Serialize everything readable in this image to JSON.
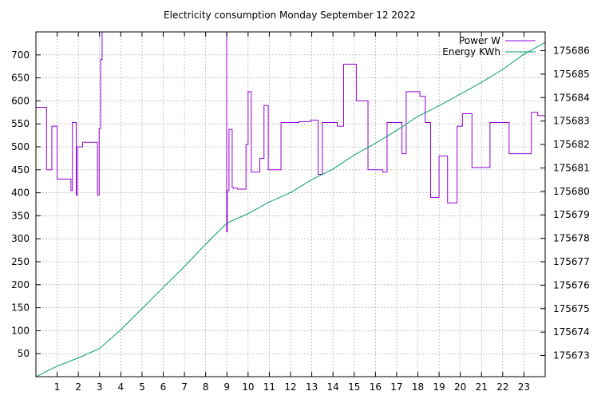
{
  "chart_data": {
    "type": "line",
    "title": "Electricity consumption Monday September 12 2022",
    "xlabel": "",
    "ylabel": "",
    "xlim": [
      0,
      24
    ],
    "ylim": [
      0,
      750
    ],
    "y2lim": [
      175672.1,
      175686.8
    ],
    "grid": true,
    "legend": "top-right",
    "x_ticks": [
      "1",
      "2",
      "3",
      "4",
      "5",
      "6",
      "7",
      "8",
      "9",
      "10",
      "11",
      "12",
      "13",
      "14",
      "15",
      "16",
      "17",
      "18",
      "19",
      "20",
      "21",
      "22",
      "23"
    ],
    "y_ticks": [
      "50",
      "100",
      "150",
      "200",
      "250",
      "300",
      "350",
      "400",
      "450",
      "500",
      "550",
      "600",
      "650",
      "700"
    ],
    "y2_ticks": [
      "175673",
      "175674",
      "175675",
      "175676",
      "175677",
      "175678",
      "175679",
      "175680",
      "175681",
      "175682",
      "175683",
      "175684",
      "175685",
      "175686"
    ],
    "series": [
      {
        "name": "Power W",
        "color": "#9400d3",
        "axis": "left",
        "step": true,
        "x": [
          0,
          0.5,
          0.5,
          0.75,
          0.75,
          1.0,
          1.0,
          1.65,
          1.65,
          1.72,
          1.72,
          1.9,
          1.9,
          1.95,
          1.95,
          2.05,
          2.05,
          2.2,
          2.2,
          2.9,
          2.9,
          2.98,
          2.98,
          3.05,
          3.05,
          3.12,
          3.12,
          3.3,
          3.3,
          3.4,
          3.4,
          8.99,
          8.99,
          9.02,
          9.02,
          9.1,
          9.1,
          9.25,
          9.25,
          9.3,
          9.3,
          9.5,
          9.5,
          9.9,
          9.9,
          10.0,
          10.0,
          10.15,
          10.15,
          10.55,
          10.55,
          10.75,
          10.75,
          10.95,
          10.95,
          11.55,
          11.55,
          12.4,
          12.4,
          12.95,
          12.95,
          13.3,
          13.3,
          13.5,
          13.5,
          14.2,
          14.2,
          14.5,
          14.5,
          15.1,
          15.1,
          15.65,
          15.65,
          16.35,
          16.35,
          16.55,
          16.55,
          17.25,
          17.25,
          17.45,
          17.45,
          18.1,
          18.1,
          18.35,
          18.35,
          18.6,
          18.6,
          19.0,
          19.0,
          19.4,
          19.4,
          19.85,
          19.85,
          20.1,
          20.1,
          20.55,
          20.55,
          21.4,
          21.4,
          22.3,
          22.3,
          23.35,
          23.35,
          23.65,
          23.65,
          24.0
        ],
        "values": [
          586,
          586,
          450,
          450,
          545,
          545,
          430,
          430,
          405,
          405,
          553,
          553,
          395,
          395,
          500,
          500,
          500,
          500,
          510,
          510,
          395,
          395,
          540,
          540,
          690,
          690,
          750,
          750,
          750,
          750,
          750,
          750,
          315,
          315,
          405,
          405,
          538,
          538,
          412,
          412,
          410,
          410,
          408,
          408,
          505,
          505,
          620,
          620,
          445,
          445,
          475,
          475,
          590,
          590,
          450,
          450,
          553,
          553,
          555,
          555,
          558,
          558,
          440,
          440,
          553,
          553,
          545,
          545,
          680,
          680,
          600,
          600,
          450,
          450,
          445,
          445,
          553,
          553,
          485,
          485,
          620,
          620,
          610,
          610,
          553,
          553,
          390,
          390,
          480,
          480,
          378,
          378,
          545,
          545,
          572,
          572,
          455,
          455,
          553,
          553,
          485,
          485,
          575,
          575,
          568,
          568
        ]
      },
      {
        "name": "Energy KWh",
        "color": "#009e73",
        "axis": "right",
        "step": false,
        "x": [
          0,
          1.0,
          2.0,
          3.0,
          4.0,
          5.0,
          6.0,
          7.0,
          8.0,
          9.0,
          10.0,
          11.0,
          12.0,
          13.0,
          14.0,
          15.0,
          16.0,
          17.0,
          18.0,
          19.0,
          20.0,
          21.0,
          22.0,
          23.0,
          24.0
        ],
        "values": [
          175672.1,
          175672.55,
          175672.9,
          175673.3,
          175674.1,
          175675.0,
          175675.9,
          175676.8,
          175677.75,
          175678.65,
          175679.05,
          175679.55,
          175679.95,
          175680.5,
          175680.95,
          175681.55,
          175682.05,
          175682.6,
          175683.2,
          175683.65,
          175684.15,
          175684.65,
          175685.2,
          175685.85,
          175686.35
        ]
      }
    ]
  }
}
